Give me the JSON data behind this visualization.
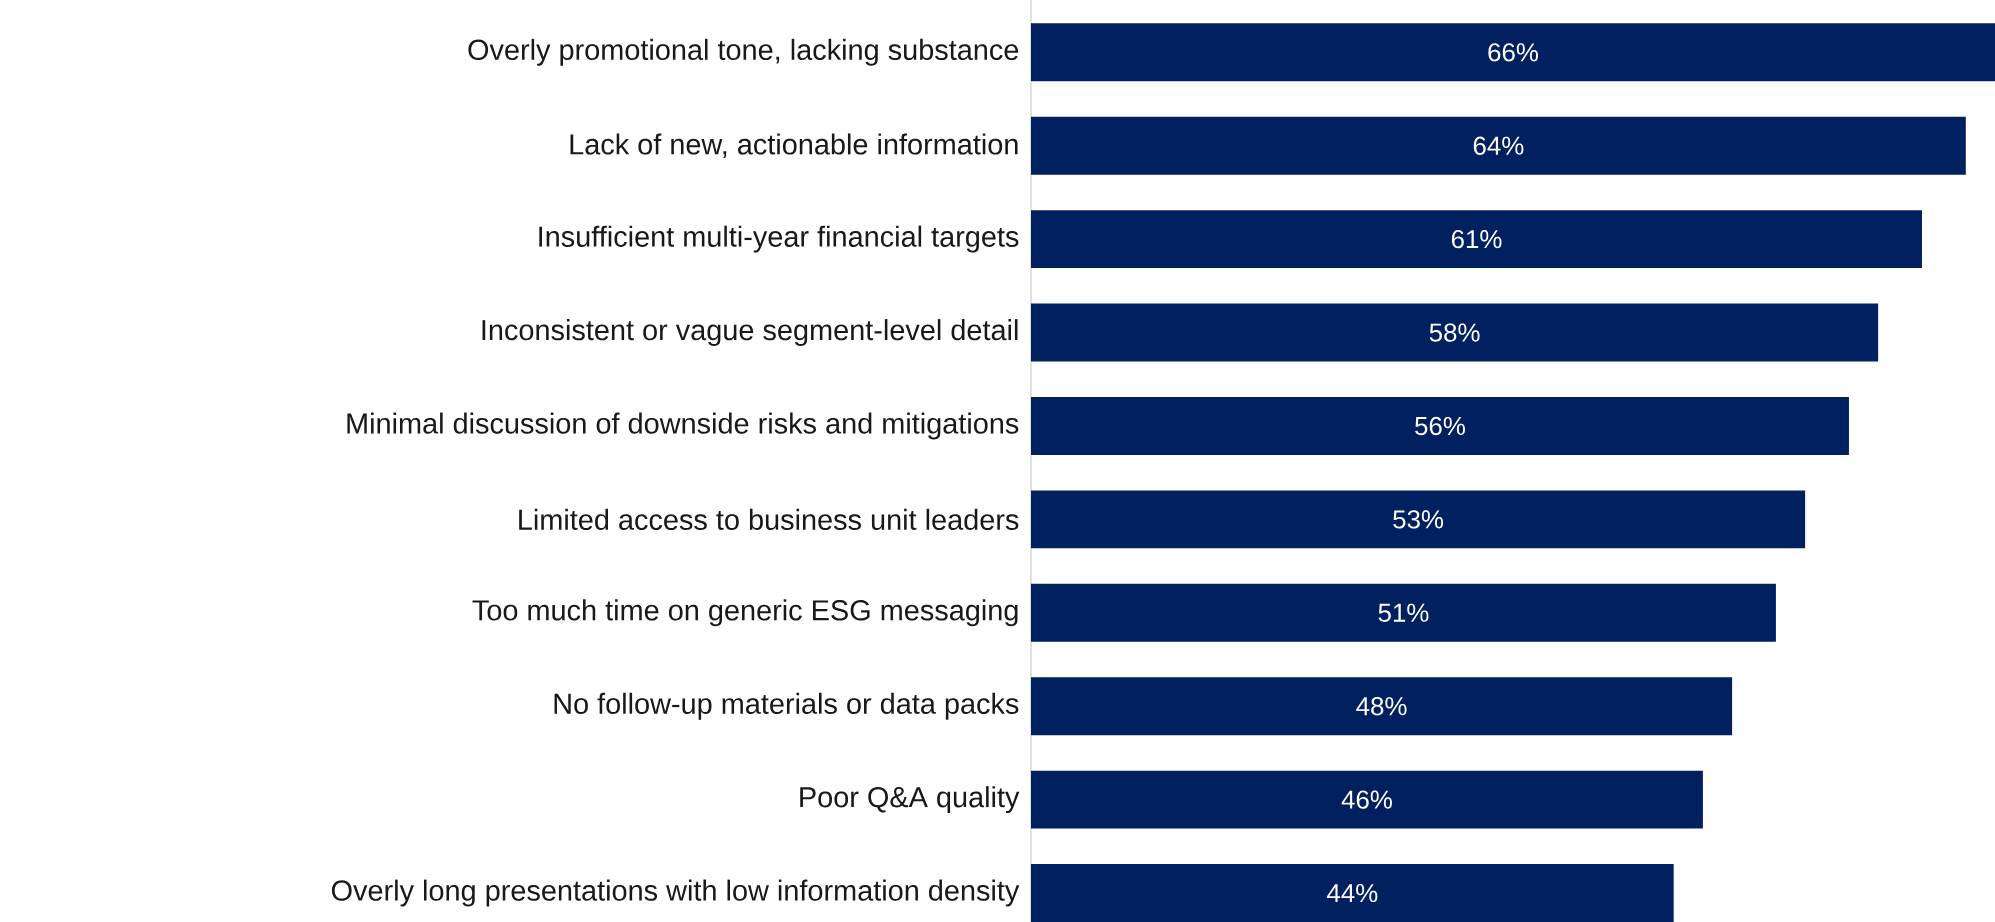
{
  "chart_data": {
    "type": "bar",
    "orientation": "horizontal",
    "color": "#002060",
    "categories": [
      "Overly promotional tone, lacking substance",
      "Lack of new, actionable information",
      "Insufficient multi-year financial targets",
      "Inconsistent or vague segment-level detail",
      "Minimal discussion of downside risks and mitigations",
      "Limited access to business unit leaders",
      "Too much time on generic ESG messaging",
      "No follow-up materials or data packs",
      "Poor Q&A quality",
      "Overly long presentations with low information density"
    ],
    "values": [
      66,
      64,
      61,
      58,
      56,
      53,
      51,
      48,
      46,
      44
    ],
    "value_labels": [
      "66%",
      "64%",
      "61%",
      "58%",
      "56%",
      "53%",
      "51%",
      "48%",
      "46%",
      "44%"
    ]
  }
}
